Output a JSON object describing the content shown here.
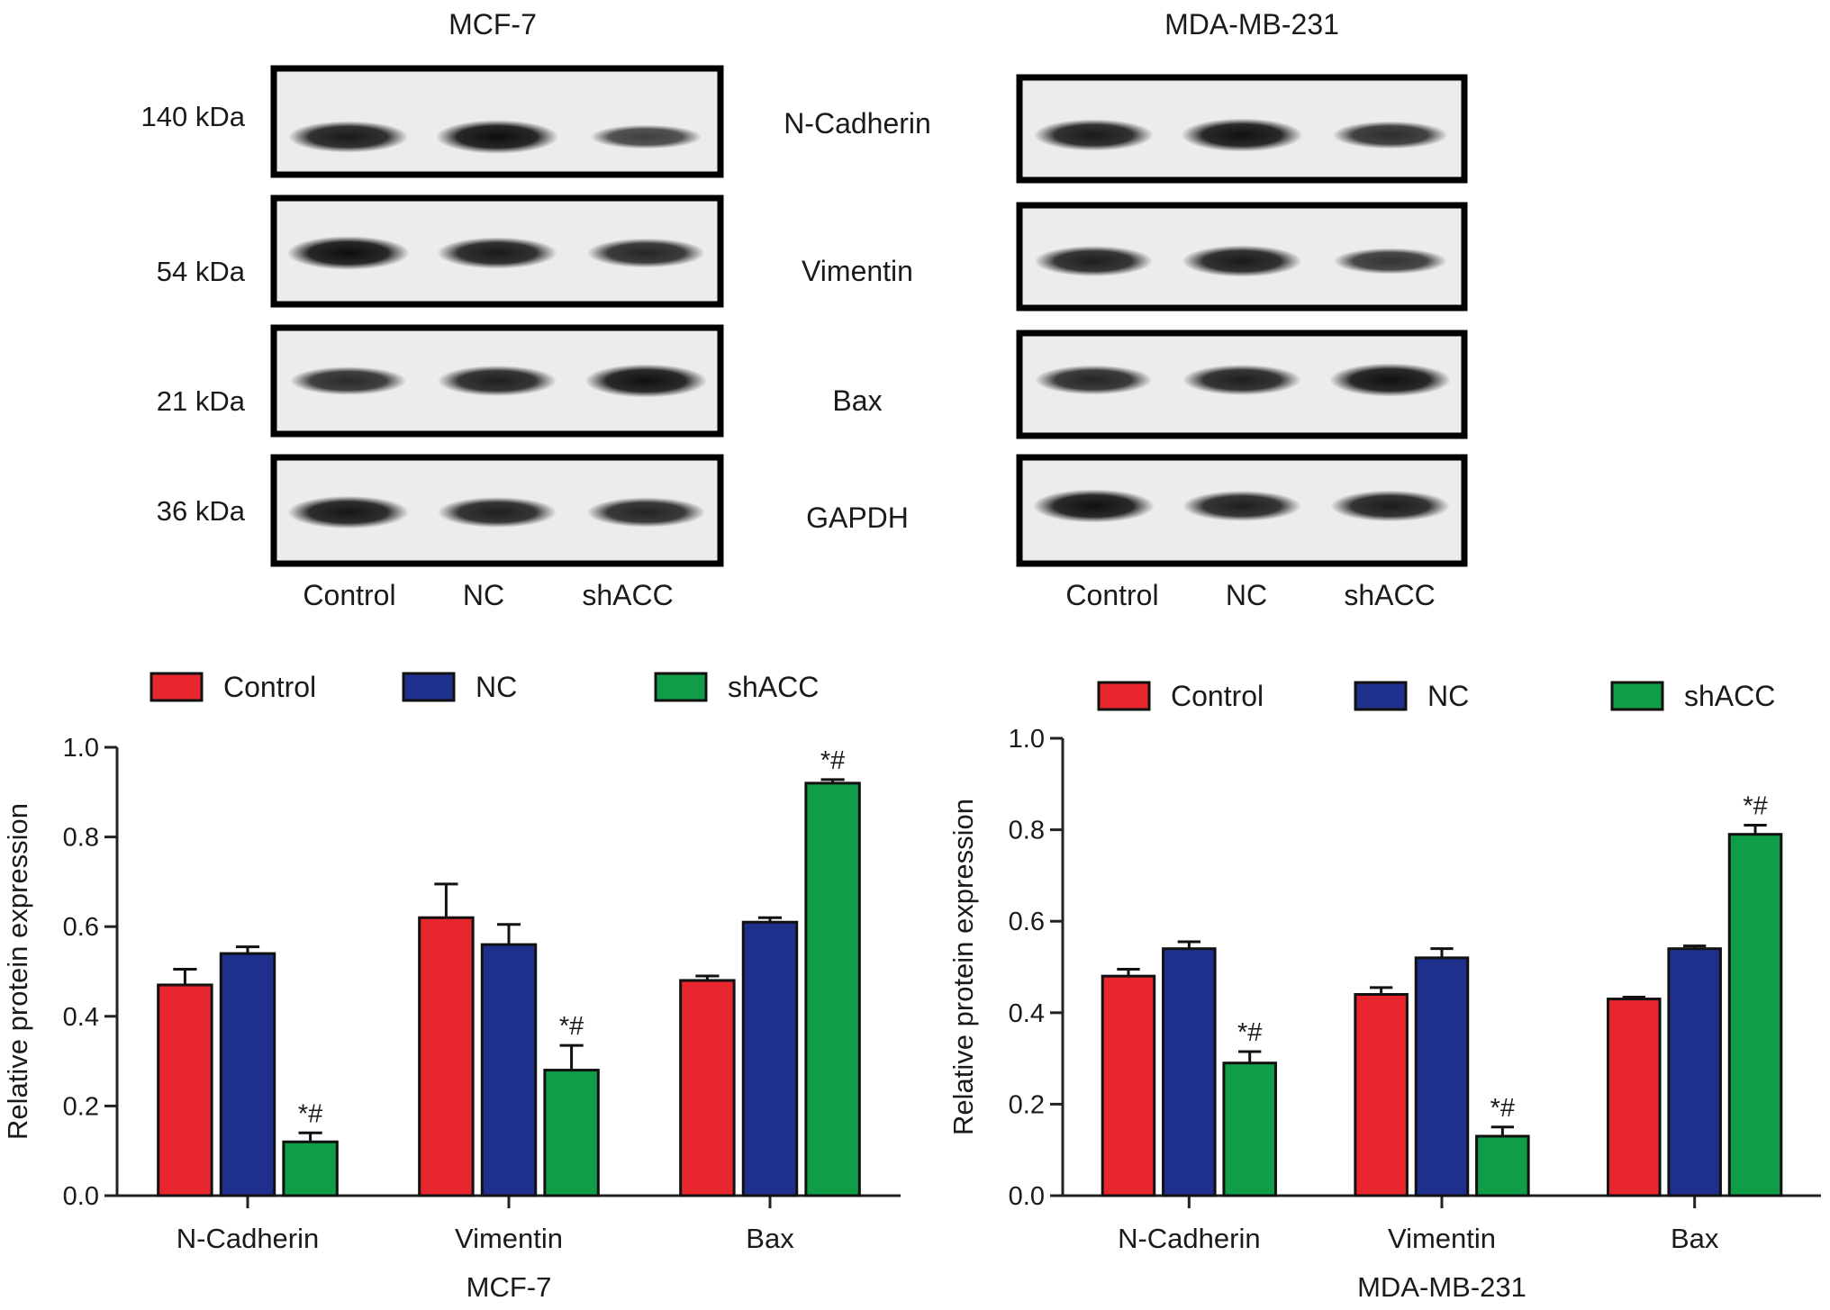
{
  "blots": [
    {
      "cell_line": "MCF-7",
      "markers": [
        "140 kDa",
        "54 kDa",
        "21 kDa",
        "36 kDa"
      ],
      "lane_labels": [
        "Control",
        "NC",
        "shACC"
      ],
      "band_intensity": [
        [
          0.8,
          0.9,
          0.45
        ],
        [
          0.9,
          0.8,
          0.7
        ],
        [
          0.65,
          0.75,
          0.88
        ],
        [
          0.85,
          0.75,
          0.72
        ]
      ]
    },
    {
      "cell_line": "MDA-MB-231",
      "markers": [],
      "lane_labels": [
        "Control",
        "NC",
        "shACC"
      ],
      "band_intensity": [
        [
          0.8,
          0.88,
          0.62
        ],
        [
          0.75,
          0.8,
          0.55
        ],
        [
          0.7,
          0.75,
          0.88
        ],
        [
          0.88,
          0.75,
          0.78
        ]
      ]
    }
  ],
  "proteins": [
    "N-Cadherin",
    "Vimentin",
    "Bax",
    "GAPDH"
  ],
  "colors": {
    "Control": "#e8262d",
    "NC": "#1f2f8c",
    "shACC": "#0f9d48"
  },
  "chart_data": [
    {
      "type": "bar",
      "title": "",
      "xlabel": "MCF-7",
      "ylabel": "Relative protein expression",
      "categories": [
        "N-Cadherin",
        "Vimentin",
        "Bax"
      ],
      "ylim": [
        0,
        1.0
      ],
      "yticks": [
        "0.0",
        "0.2",
        "0.4",
        "0.6",
        "0.8",
        "1.0"
      ],
      "legend_position": "top",
      "series": [
        {
          "name": "Control",
          "values": [
            0.47,
            0.62,
            0.48
          ],
          "errors": [
            0.035,
            0.075,
            0.01
          ]
        },
        {
          "name": "NC",
          "values": [
            0.54,
            0.56,
            0.61
          ],
          "errors": [
            0.015,
            0.045,
            0.01
          ]
        },
        {
          "name": "shACC",
          "values": [
            0.12,
            0.28,
            0.92
          ],
          "errors": [
            0.02,
            0.055,
            0.008
          ]
        }
      ],
      "annotations": [
        {
          "category": "N-Cadherin",
          "series": "shACC",
          "text": "*#"
        },
        {
          "category": "Vimentin",
          "series": "shACC",
          "text": "*#"
        },
        {
          "category": "Bax",
          "series": "shACC",
          "text": "*#"
        }
      ]
    },
    {
      "type": "bar",
      "title": "",
      "xlabel": "MDA-MB-231",
      "ylabel": "Relative protein expression",
      "categories": [
        "N-Cadherin",
        "Vimentin",
        "Bax"
      ],
      "ylim": [
        0,
        1.0
      ],
      "yticks": [
        "0.0",
        "0.2",
        "0.4",
        "0.6",
        "0.8",
        "1.0"
      ],
      "legend_position": "top",
      "series": [
        {
          "name": "Control",
          "values": [
            0.48,
            0.44,
            0.43
          ],
          "errors": [
            0.015,
            0.015,
            0.004
          ]
        },
        {
          "name": "NC",
          "values": [
            0.54,
            0.52,
            0.54
          ],
          "errors": [
            0.015,
            0.02,
            0.006
          ]
        },
        {
          "name": "shACC",
          "values": [
            0.29,
            0.13,
            0.79
          ],
          "errors": [
            0.025,
            0.02,
            0.02
          ]
        }
      ],
      "annotations": [
        {
          "category": "N-Cadherin",
          "series": "shACC",
          "text": "*#"
        },
        {
          "category": "Vimentin",
          "series": "shACC",
          "text": "*#"
        },
        {
          "category": "Bax",
          "series": "shACC",
          "text": "*#"
        }
      ]
    }
  ]
}
